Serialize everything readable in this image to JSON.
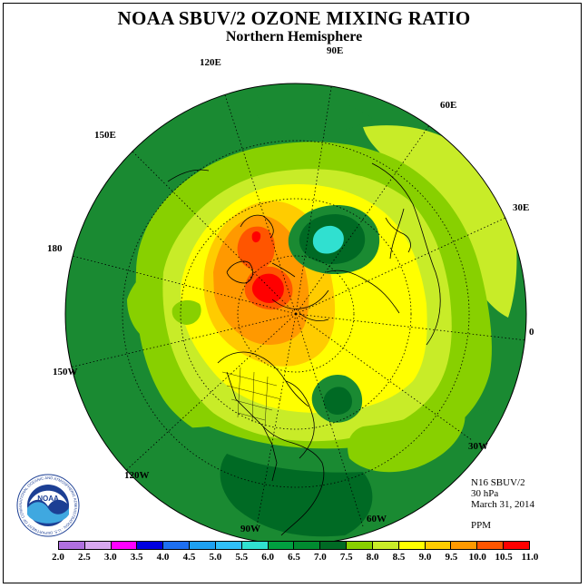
{
  "title": "NOAA SBUV/2 OZONE MIXING RATIO",
  "subtitle": "Northern Hemisphere",
  "longitude_labels": {
    "lon_90e": "90E",
    "lon_60e": "60E",
    "lon_30e": "30E",
    "lon_0": "0",
    "lon_30w": "30W",
    "lon_60w": "60W",
    "lon_90w": "90W",
    "lon_120w": "120W",
    "lon_150w": "150W",
    "lon_180": "180",
    "lon_150e": "150E",
    "lon_120e": "120E"
  },
  "info": {
    "satellite": "N16 SBUV/2",
    "level": "30 hPa",
    "date": "March 31, 2014",
    "units": "PPM"
  },
  "colorbar": {
    "ticks": [
      "2.0",
      "2.5",
      "3.0",
      "3.5",
      "4.0",
      "4.5",
      "5.0",
      "5.5",
      "6.0",
      "6.5",
      "7.0",
      "7.5",
      "8.0",
      "8.5",
      "9.0",
      "9.5",
      "10.0",
      "10.5",
      "11.0"
    ],
    "colors": [
      "#b070e0",
      "#d8a8f0",
      "#ff00ff",
      "#0000e0",
      "#1e6ff0",
      "#1ea0f0",
      "#30c0f8",
      "#30e0d0",
      "#00a040",
      "#008a30",
      "#006a24",
      "#88d000",
      "#c8ec28",
      "#ffff00",
      "#ffcc00",
      "#ff9900",
      "#ff5500",
      "#ff0000",
      "#8b5a3c"
    ]
  },
  "logo_text": "NOAA",
  "logo_ring_text": "NATIONAL OCEANIC AND ATMOSPHERIC ADMINISTRATION · U.S. DEPARTMENT OF COMMERCE"
}
